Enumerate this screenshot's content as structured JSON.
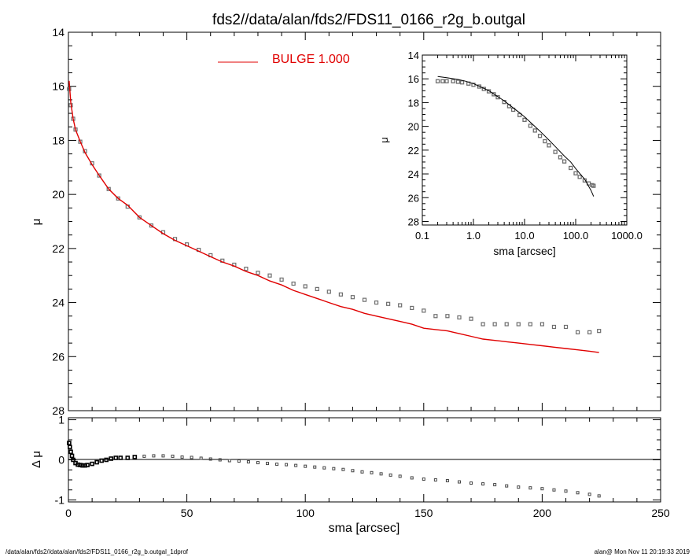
{
  "title": "fds2//data/alan/fds2/FDS11_0166_r2g_b.outgal",
  "footer": {
    "left": "/data/alan/fds2//data/alan/fds2/FDS11_0166_r2g_b.outgal_1dprof",
    "right": "alan@  Mon Nov 11 20:19:33 2019"
  },
  "colors": {
    "model": "#e00000",
    "data": "#6e6e6e",
    "axes": "#000000"
  },
  "chart_data": [
    {
      "id": "main-profile",
      "type": "scatter",
      "xlabel": "",
      "ylabel": "μ",
      "xlim": [
        0,
        250
      ],
      "ylim": [
        28,
        14
      ],
      "y_inverted": true,
      "yticks": [
        "14",
        "16",
        "18",
        "20",
        "22",
        "24",
        "26",
        "28"
      ],
      "legend": {
        "label": "BULGE  1.000",
        "position": "top-center"
      },
      "series": [
        {
          "name": "",
          "style": "open-squares",
          "x": [
            0.3,
            1,
            2,
            3,
            5,
            7,
            10,
            13,
            17,
            21,
            25,
            30,
            35,
            40,
            45,
            50,
            55,
            60,
            65,
            70,
            75,
            80,
            85,
            90,
            95,
            100,
            105,
            110,
            115,
            120,
            125,
            130,
            135,
            140,
            145,
            150,
            155,
            160,
            165,
            170,
            175,
            180,
            185,
            190,
            195,
            200,
            205,
            210,
            215,
            220,
            224
          ],
          "y": [
            16.1,
            16.7,
            17.2,
            17.6,
            18.05,
            18.4,
            18.85,
            19.3,
            19.8,
            20.15,
            20.45,
            20.85,
            21.15,
            21.4,
            21.65,
            21.85,
            22.05,
            22.25,
            22.45,
            22.6,
            22.75,
            22.9,
            23.0,
            23.15,
            23.3,
            23.4,
            23.5,
            23.6,
            23.7,
            23.8,
            23.9,
            24.0,
            24.05,
            24.1,
            24.2,
            24.3,
            24.5,
            24.5,
            24.55,
            24.6,
            24.8,
            24.8,
            24.8,
            24.8,
            24.8,
            24.8,
            24.9,
            24.9,
            25.1,
            25.1,
            25.05
          ]
        },
        {
          "name": "BULGE  1.000",
          "style": "line",
          "x": [
            0.3,
            1,
            2,
            3,
            5,
            7,
            10,
            13,
            17,
            21,
            25,
            30,
            35,
            40,
            45,
            50,
            55,
            60,
            65,
            70,
            75,
            80,
            85,
            90,
            95,
            100,
            105,
            110,
            115,
            120,
            125,
            130,
            135,
            140,
            145,
            150,
            155,
            160,
            165,
            170,
            175,
            180,
            185,
            190,
            195,
            200,
            205,
            210,
            215,
            220,
            224
          ],
          "y": [
            15.8,
            16.6,
            17.2,
            17.6,
            18.05,
            18.45,
            18.9,
            19.3,
            19.8,
            20.15,
            20.4,
            20.85,
            21.15,
            21.45,
            21.7,
            21.9,
            22.1,
            22.3,
            22.5,
            22.65,
            22.85,
            23.0,
            23.2,
            23.35,
            23.55,
            23.7,
            23.85,
            24.0,
            24.15,
            24.25,
            24.4,
            24.5,
            24.6,
            24.7,
            24.8,
            24.95,
            25.0,
            25.05,
            25.15,
            25.25,
            25.35,
            25.4,
            25.45,
            25.5,
            25.55,
            25.6,
            25.65,
            25.7,
            25.75,
            25.8,
            25.85
          ]
        }
      ]
    },
    {
      "id": "residual",
      "type": "scatter",
      "xlabel": "sma [arcsec]",
      "ylabel": "Δ μ",
      "xlim": [
        0,
        250
      ],
      "ylim": [
        -1.05,
        1.05
      ],
      "xticks": [
        "0",
        "50",
        "100",
        "150",
        "200",
        "250"
      ],
      "yticks": [
        "1",
        "0",
        "-1"
      ],
      "series": [
        {
          "name": "",
          "style": "open-squares",
          "x": [
            0.3,
            0.6,
            1,
            1.5,
            2,
            3,
            4,
            5,
            6,
            7,
            8,
            10,
            12,
            14,
            16,
            18,
            20,
            22,
            25,
            28,
            32,
            36,
            40,
            44,
            48,
            52,
            56,
            60,
            64,
            68,
            72,
            76,
            80,
            84,
            88,
            92,
            96,
            100,
            104,
            108,
            112,
            116,
            120,
            124,
            128,
            132,
            136,
            140,
            145,
            150,
            155,
            160,
            165,
            170,
            175,
            180,
            185,
            190,
            195,
            200,
            205,
            210,
            215,
            220,
            224
          ],
          "y": [
            0.42,
            0.32,
            0.2,
            0.1,
            0.0,
            -0.08,
            -0.12,
            -0.13,
            -0.14,
            -0.14,
            -0.13,
            -0.1,
            -0.06,
            -0.02,
            0.0,
            0.03,
            0.05,
            0.05,
            0.05,
            0.07,
            0.09,
            0.1,
            0.1,
            0.09,
            0.07,
            0.06,
            0.04,
            0.02,
            0.0,
            -0.02,
            -0.03,
            -0.05,
            -0.07,
            -0.09,
            -0.11,
            -0.12,
            -0.14,
            -0.16,
            -0.18,
            -0.2,
            -0.22,
            -0.24,
            -0.27,
            -0.3,
            -0.32,
            -0.35,
            -0.38,
            -0.41,
            -0.45,
            -0.48,
            -0.5,
            -0.52,
            -0.55,
            -0.58,
            -0.6,
            -0.62,
            -0.65,
            -0.68,
            -0.7,
            -0.72,
            -0.75,
            -0.78,
            -0.82,
            -0.86,
            -0.9
          ]
        }
      ]
    },
    {
      "id": "inset-log-profile",
      "type": "scatter",
      "xlabel": "sma [arcsec]",
      "ylabel": "μ",
      "x_scale": "log",
      "xlim": [
        0.1,
        1000
      ],
      "ylim": [
        28.3,
        14
      ],
      "y_inverted": true,
      "xticks": [
        "0.1",
        "1.0",
        "10.0",
        "100.0",
        "1000.0"
      ],
      "yticks": [
        "14",
        "16",
        "18",
        "20",
        "22",
        "24",
        "26",
        "28"
      ],
      "series": [
        {
          "name": "",
          "style": "open-squares",
          "x": [
            0.2,
            0.25,
            0.3,
            0.4,
            0.5,
            0.6,
            0.8,
            1.0,
            1.3,
            1.6,
            2,
            2.5,
            3,
            4,
            5,
            6,
            8,
            10,
            13,
            16,
            20,
            25,
            30,
            40,
            50,
            60,
            80,
            100,
            120,
            150,
            180,
            210,
            224
          ],
          "y": [
            16.2,
            16.2,
            16.2,
            16.2,
            16.25,
            16.3,
            16.4,
            16.5,
            16.65,
            16.85,
            17.05,
            17.3,
            17.55,
            17.95,
            18.3,
            18.6,
            19.05,
            19.45,
            19.95,
            20.35,
            20.8,
            21.25,
            21.6,
            22.15,
            22.6,
            22.95,
            23.5,
            23.95,
            24.25,
            24.55,
            24.8,
            24.95,
            25.0
          ]
        },
        {
          "name": "",
          "style": "line",
          "x": [
            0.2,
            0.3,
            0.5,
            0.7,
            1,
            1.5,
            2,
            3,
            4,
            6,
            8,
            10,
            15,
            20,
            30,
            40,
            60,
            80,
            100,
            150,
            200,
            224
          ],
          "y": [
            15.8,
            15.9,
            16.05,
            16.2,
            16.4,
            16.75,
            17.0,
            17.5,
            17.85,
            18.45,
            18.85,
            19.2,
            19.9,
            20.4,
            21.15,
            21.7,
            22.5,
            23.0,
            23.55,
            24.45,
            25.4,
            25.9
          ]
        }
      ]
    }
  ]
}
